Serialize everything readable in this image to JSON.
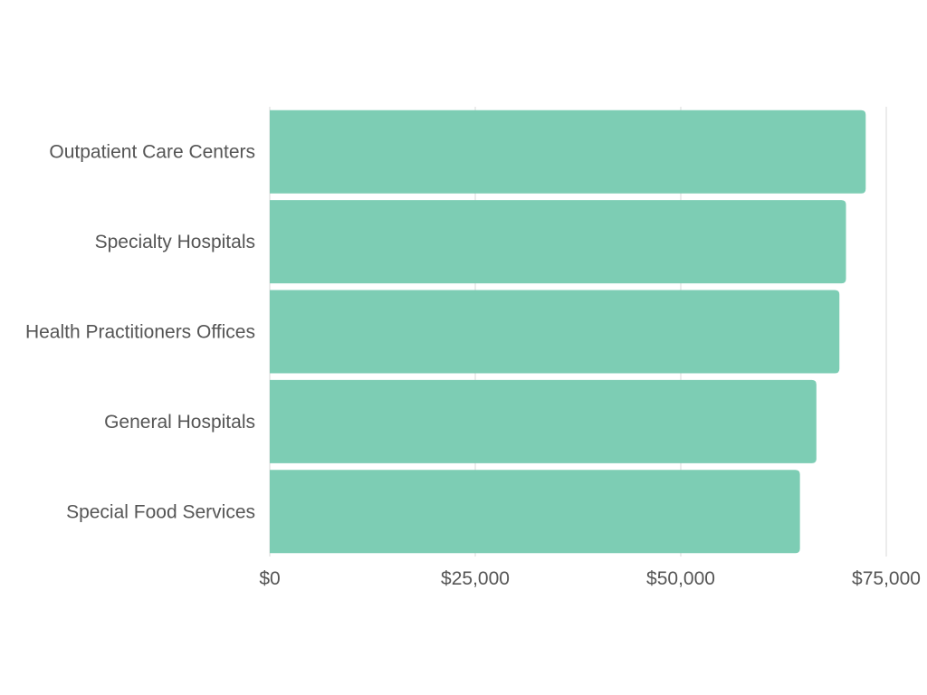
{
  "chart_data": {
    "type": "bar",
    "orientation": "horizontal",
    "title": "",
    "xlabel": "",
    "ylabel": "",
    "categories": [
      "Outpatient Care Centers",
      "Specialty Hospitals",
      "Health Practitioners Offices",
      "General Hospitals",
      "Special Food Services"
    ],
    "values": [
      72500,
      70100,
      69300,
      66500,
      64500
    ],
    "xlim": [
      0,
      75000
    ],
    "xticks": [
      0,
      25000,
      50000,
      75000
    ],
    "xtick_labels": [
      "$0",
      "$25,000",
      "$50,000",
      "$75,000"
    ],
    "grid": true,
    "legend": "none",
    "bar_color": "#7DCDB4",
    "grid_color": "#E6E6E6",
    "text_color": "#555555"
  }
}
